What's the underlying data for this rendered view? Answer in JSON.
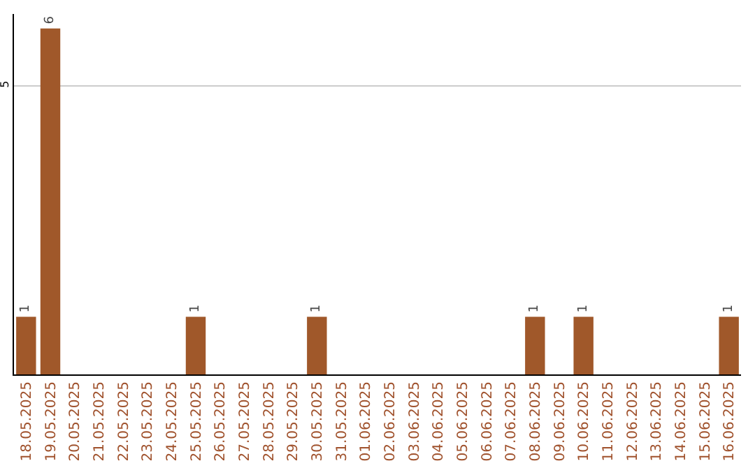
{
  "chart_data": {
    "type": "bar",
    "categories": [
      "18.05.2025",
      "19.05.2025",
      "20.05.2025",
      "21.05.2025",
      "22.05.2025",
      "23.05.2025",
      "24.05.2025",
      "25.05.2025",
      "26.05.2025",
      "27.05.2025",
      "28.05.2025",
      "29.05.2025",
      "30.05.2025",
      "31.05.2025",
      "01.06.2025",
      "02.06.2025",
      "03.06.2025",
      "04.06.2025",
      "05.06.2025",
      "06.06.2025",
      "07.06.2025",
      "08.06.2025",
      "09.06.2025",
      "10.06.2025",
      "11.06.2025",
      "12.06.2025",
      "13.06.2025",
      "14.06.2025",
      "15.06.2025",
      "16.06.2025"
    ],
    "values": [
      1,
      6,
      null,
      null,
      null,
      null,
      null,
      1,
      null,
      null,
      null,
      null,
      1,
      null,
      null,
      null,
      null,
      null,
      null,
      null,
      null,
      1,
      null,
      1,
      null,
      null,
      null,
      null,
      null,
      1
    ],
    "color": "#a0582a",
    "ylim": [
      0,
      6.25
    ],
    "yticks": [
      5
    ],
    "grid": "y",
    "data_labels": true
  }
}
